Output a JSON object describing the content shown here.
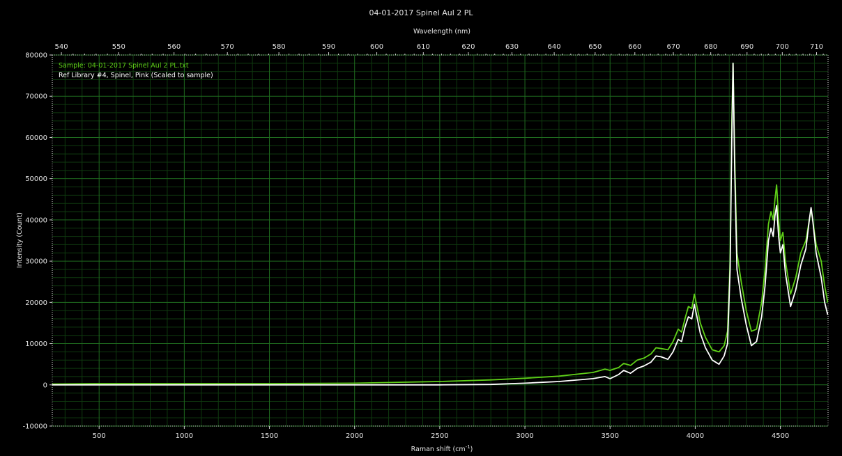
{
  "chart_data": {
    "type": "line",
    "title": "04-01-2017 Spinel Aul 2 PL",
    "top_axis_label": "Wavelength (nm)",
    "xlabel": "Raman shift (cm",
    "xlabel_superscript": "-1",
    "xlabel_suffix": ")",
    "ylabel": "Intensity (Count)",
    "xlim": [
      225,
      4780
    ],
    "ylim": [
      -10000,
      80000
    ],
    "x_ticks": [
      "500",
      "1000",
      "1500",
      "2000",
      "2500",
      "3000",
      "3500",
      "4000",
      "4500"
    ],
    "y_ticks": [
      "-10000",
      "0",
      "10000",
      "20000",
      "30000",
      "40000",
      "50000",
      "60000",
      "70000",
      "80000"
    ],
    "top_ticks": [
      "540",
      "550",
      "560",
      "570",
      "580",
      "590",
      "600",
      "610",
      "620",
      "630",
      "640",
      "650",
      "660",
      "670",
      "680",
      "690",
      "700",
      "710"
    ],
    "grid": true,
    "legend_position": "top-left",
    "series": [
      {
        "name": "Sample: 04-01-2017 Spinel Aul 2 PL.txt",
        "color": "#5fcf18",
        "x": [
          225,
          500,
          1000,
          1500,
          2000,
          2500,
          2800,
          3000,
          3200,
          3400,
          3470,
          3500,
          3550,
          3580,
          3620,
          3660,
          3700,
          3740,
          3770,
          3800,
          3840,
          3870,
          3900,
          3920,
          3940,
          3960,
          3980,
          3995,
          4010,
          4030,
          4060,
          4100,
          4140,
          4170,
          4190,
          4205,
          4215,
          4222,
          4232,
          4245,
          4270,
          4300,
          4330,
          4360,
          4390,
          4410,
          4430,
          4445,
          4458,
          4468,
          4478,
          4490,
          4500,
          4515,
          4530,
          4560,
          4590,
          4620,
          4650,
          4670,
          4680,
          4690,
          4710,
          4740,
          4760,
          4778
        ],
        "values": [
          200,
          300,
          300,
          300,
          400,
          800,
          1200,
          1600,
          2100,
          3000,
          3800,
          3500,
          4200,
          5200,
          4700,
          6000,
          6500,
          7500,
          9000,
          8800,
          8500,
          10500,
          13500,
          12800,
          16000,
          19000,
          18500,
          22000,
          19000,
          15000,
          11500,
          8500,
          8000,
          9500,
          13000,
          30000,
          64000,
          78000,
          55000,
          32000,
          25000,
          18000,
          13000,
          13500,
          20000,
          28000,
          39000,
          42000,
          40000,
          45000,
          48500,
          40000,
          35000,
          37000,
          30000,
          22000,
          26000,
          32000,
          35000,
          40000,
          42500,
          40000,
          34000,
          30000,
          24000,
          20000
        ]
      },
      {
        "name": "Ref Library #4, Spinel, Pink (Scaled to sample)",
        "color": "#ffffff",
        "x": [
          225,
          500,
          1000,
          1500,
          2000,
          2500,
          2800,
          3000,
          3200,
          3400,
          3470,
          3500,
          3550,
          3580,
          3620,
          3660,
          3700,
          3740,
          3770,
          3800,
          3840,
          3870,
          3900,
          3920,
          3940,
          3960,
          3980,
          3995,
          4010,
          4030,
          4060,
          4100,
          4140,
          4170,
          4190,
          4205,
          4215,
          4222,
          4232,
          4245,
          4270,
          4300,
          4330,
          4360,
          4390,
          4410,
          4430,
          4445,
          4458,
          4468,
          4478,
          4490,
          4500,
          4515,
          4530,
          4560,
          4590,
          4620,
          4650,
          4670,
          4680,
          4690,
          4710,
          4740,
          4760,
          4778
        ],
        "values": [
          0,
          0,
          0,
          0,
          0,
          0,
          100,
          400,
          800,
          1500,
          2000,
          1500,
          2500,
          3500,
          2800,
          4000,
          4600,
          5500,
          7000,
          6800,
          6200,
          8000,
          11000,
          10500,
          14000,
          16500,
          16000,
          19500,
          16500,
          12500,
          9000,
          6000,
          5000,
          7000,
          10000,
          28000,
          60000,
          78000,
          52000,
          28000,
          21000,
          14500,
          9500,
          10500,
          16500,
          24000,
          35000,
          38000,
          36000,
          41000,
          43500,
          36000,
          32000,
          34000,
          27000,
          19000,
          23000,
          29000,
          33000,
          40000,
          43000,
          40000,
          32000,
          26000,
          20000,
          17000
        ]
      }
    ]
  }
}
